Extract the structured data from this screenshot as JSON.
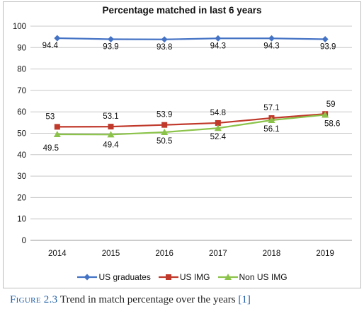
{
  "chart_data": {
    "type": "line",
    "title": "Percentage matched in last 6 years",
    "categories": [
      "2014",
      "2015",
      "2016",
      "2017",
      "2018",
      "2019"
    ],
    "ylim": [
      0,
      100
    ],
    "yticks": [
      0,
      10,
      20,
      30,
      40,
      50,
      60,
      70,
      80,
      90,
      100
    ],
    "grid": true,
    "legend_position": "bottom",
    "series": [
      {
        "name": "US graduates",
        "values": [
          94.4,
          93.9,
          93.8,
          94.3,
          94.3,
          93.9
        ],
        "color": "#4472c4",
        "marker": "diamond"
      },
      {
        "name": "US IMG",
        "values": [
          53,
          53.1,
          53.9,
          54.8,
          57.1,
          59
        ],
        "color": "#c0392b",
        "marker": "square"
      },
      {
        "name": "Non US IMG",
        "values": [
          49.5,
          49.4,
          50.5,
          52.4,
          56.1,
          58.6
        ],
        "color": "#8bc34a",
        "marker": "triangle"
      }
    ]
  },
  "caption": {
    "figure_label": "Figure 2.3",
    "text": " Trend in match percentage over the years ",
    "reference": "[1]"
  }
}
